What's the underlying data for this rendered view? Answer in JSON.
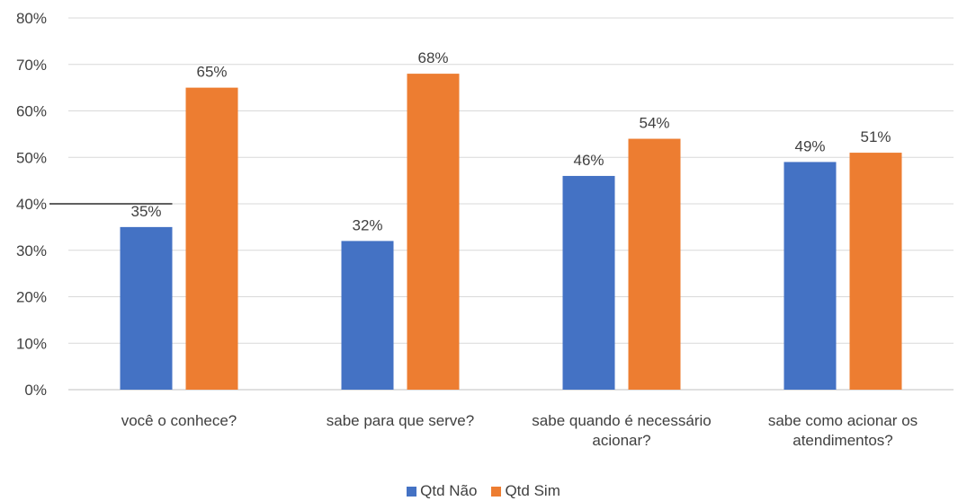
{
  "chart_data": {
    "type": "bar",
    "categories": [
      [
        "você o conhece?"
      ],
      [
        "sabe para que serve?"
      ],
      [
        "sabe quando é necessário",
        "acionar?"
      ],
      [
        "sabe como acionar os",
        "atendimentos?"
      ]
    ],
    "series": [
      {
        "name": "Qtd Não",
        "color": "#4472C4",
        "values": [
          35,
          32,
          46,
          49
        ],
        "labels": [
          "35%",
          "32%",
          "46%",
          "49%"
        ]
      },
      {
        "name": "Qtd Sim",
        "color": "#ED7D31",
        "values": [
          65,
          68,
          54,
          51
        ],
        "labels": [
          "65%",
          "68%",
          "54%",
          "51%"
        ]
      }
    ],
    "ylim": [
      0,
      80
    ],
    "yticks": [
      {
        "value": 0,
        "label": "0%"
      },
      {
        "value": 10,
        "label": "10%"
      },
      {
        "value": 20,
        "label": "20%"
      },
      {
        "value": 30,
        "label": "30%"
      },
      {
        "value": 40,
        "label": "40%"
      },
      {
        "value": 50,
        "label": "50%"
      },
      {
        "value": 60,
        "label": "60%"
      },
      {
        "value": 70,
        "label": "70%"
      },
      {
        "value": 80,
        "label": "80%"
      }
    ],
    "grid": true,
    "legend_position": "bottom",
    "annotation_line": {
      "y": 40,
      "color": "#000000"
    }
  }
}
